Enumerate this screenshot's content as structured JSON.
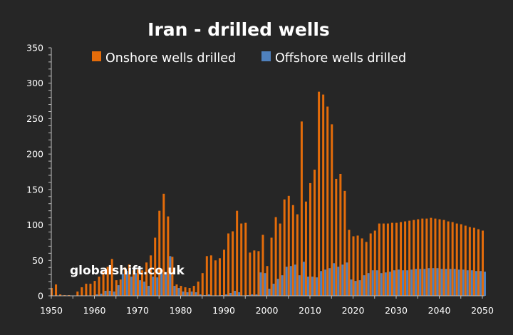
{
  "chart_data": {
    "type": "bar",
    "title": "Iran - drilled wells",
    "xlabel": "",
    "ylabel": "",
    "watermark": "globalshift.co.uk",
    "legend_position": "top",
    "grid": false,
    "xlim": [
      1950,
      2050
    ],
    "ylim": [
      0,
      350
    ],
    "y_ticks": [
      0,
      50,
      100,
      150,
      200,
      250,
      300,
      350
    ],
    "y_minor_step": 10,
    "x_ticks": [
      1950,
      1960,
      1970,
      1980,
      1990,
      2000,
      2010,
      2020,
      2030,
      2040,
      2050
    ],
    "x_minor_step": 5,
    "x": [
      1950,
      1951,
      1952,
      1953,
      1954,
      1955,
      1956,
      1957,
      1958,
      1959,
      1960,
      1961,
      1962,
      1963,
      1964,
      1965,
      1966,
      1967,
      1968,
      1969,
      1970,
      1971,
      1972,
      1973,
      1974,
      1975,
      1976,
      1977,
      1978,
      1979,
      1980,
      1981,
      1982,
      1983,
      1984,
      1985,
      1986,
      1987,
      1988,
      1989,
      1990,
      1991,
      1992,
      1993,
      1994,
      1995,
      1996,
      1997,
      1998,
      1999,
      2000,
      2001,
      2002,
      2003,
      2004,
      2005,
      2006,
      2007,
      2008,
      2009,
      2010,
      2011,
      2012,
      2013,
      2014,
      2015,
      2016,
      2017,
      2018,
      2019,
      2020,
      2021,
      2022,
      2023,
      2024,
      2025,
      2026,
      2027,
      2028,
      2029,
      2030,
      2031,
      2032,
      2033,
      2034,
      2035,
      2036,
      2037,
      2038,
      2039,
      2040,
      2041,
      2042,
      2043,
      2044,
      2045,
      2046,
      2047,
      2048,
      2049,
      2050
    ],
    "series": [
      {
        "name": "Onshore wells drilled",
        "color": "#E46C0A",
        "values": [
          11,
          16,
          2,
          1,
          1,
          0,
          6,
          12,
          17,
          17,
          21,
          27,
          34,
          41,
          52,
          22,
          23,
          40,
          44,
          36,
          37,
          36,
          47,
          57,
          82,
          120,
          144,
          112,
          55,
          16,
          14,
          12,
          11,
          14,
          20,
          32,
          56,
          57,
          50,
          53,
          65,
          88,
          91,
          120,
          102,
          103,
          61,
          64,
          63,
          86,
          42,
          82,
          111,
          102,
          136,
          141,
          128,
          115,
          246,
          133,
          159,
          178,
          288,
          284,
          267,
          242,
          165,
          172,
          148,
          93,
          84,
          85,
          81,
          76,
          88,
          92,
          102,
          102,
          102,
          103,
          103,
          104,
          105,
          106,
          107,
          108,
          109,
          109,
          110,
          109,
          108,
          107,
          105,
          104,
          102,
          101,
          99,
          97,
          96,
          94,
          92
        ]
      },
      {
        "name": "Offshore wells drilled",
        "color": "#4F81BD",
        "values": [
          0,
          0,
          0,
          0,
          0,
          0,
          0,
          0,
          0,
          0,
          2,
          3,
          7,
          7,
          6,
          15,
          31,
          35,
          27,
          32,
          22,
          20,
          14,
          27,
          26,
          32,
          33,
          56,
          14,
          11,
          6,
          5,
          6,
          5,
          2,
          1,
          2,
          0,
          0,
          1,
          2,
          4,
          7,
          5,
          0,
          1,
          2,
          2,
          33,
          32,
          10,
          17,
          24,
          29,
          41,
          42,
          44,
          29,
          48,
          27,
          27,
          26,
          35,
          37,
          39,
          46,
          41,
          44,
          47,
          23,
          21,
          22,
          29,
          32,
          36,
          36,
          32,
          33,
          34,
          36,
          37,
          36,
          36,
          37,
          38,
          38,
          38,
          39,
          39,
          39,
          38,
          38,
          38,
          38,
          37,
          37,
          36,
          36,
          35,
          35,
          34
        ]
      }
    ]
  }
}
